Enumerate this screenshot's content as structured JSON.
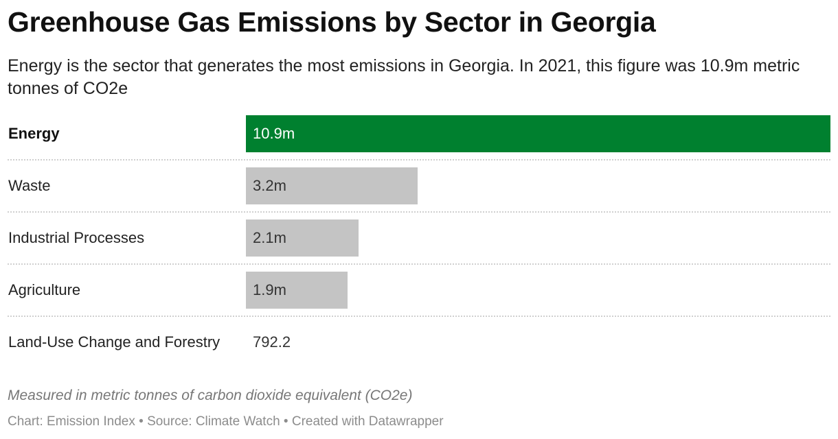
{
  "header": {
    "title": "Greenhouse Gas Emissions by Sector in Georgia",
    "subtitle": "Energy is the sector that generates the most emissions in Georgia. In 2021, this figure was 10.9m metric tonnes of CO2e"
  },
  "chart_data": {
    "type": "bar",
    "orientation": "horizontal",
    "categories": [
      "Energy",
      "Waste",
      "Industrial Processes",
      "Agriculture",
      "Land-Use Change and Forestry"
    ],
    "values": [
      10900000,
      3200000,
      2100000,
      1900000,
      792.2
    ],
    "value_labels": [
      "10.9m",
      "3.2m",
      "2.1m",
      "1.9m",
      "792.2"
    ],
    "highlight": "Energy",
    "xlim": [
      0,
      10900000
    ],
    "grid": false,
    "colors": {
      "highlight": "#00802f",
      "default": "#c4c4c4"
    }
  },
  "notes": "Measured in metric tonnes of carbon dioxide equivalent (CO2e)",
  "footer": "Chart: Emission Index • Source: Climate Watch • Created with Datawrapper"
}
